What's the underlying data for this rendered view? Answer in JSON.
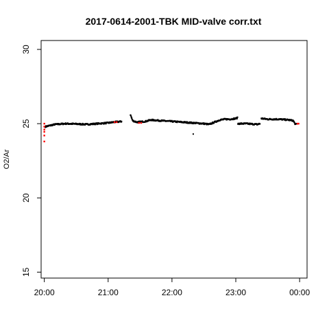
{
  "chart_data": {
    "type": "scatter",
    "title": "2017-0614-2001-TBK MID-valve corr.txt",
    "xlabel": "",
    "ylabel": "O2/Ar",
    "xlim": [
      "19:57",
      "00:07"
    ],
    "ylim": [
      14.6,
      30.6
    ],
    "x_ticks": [
      "20:00",
      "21:00",
      "22:00",
      "23:00",
      "00:00"
    ],
    "y_ticks": [
      "15",
      "20",
      "25",
      "30"
    ],
    "grid": false,
    "legend": "none",
    "colors": {
      "main": "#000000",
      "flagged": "#ff0000"
    },
    "series": [
      {
        "color": "#000000",
        "segments": [
          [
            [
              "20:01",
              24.8
            ],
            [
              "20:10",
              24.95
            ],
            [
              "20:20",
              25.0
            ],
            [
              "20:30",
              24.98
            ],
            [
              "20:40",
              24.95
            ],
            [
              "20:50",
              25.0
            ],
            [
              "21:00",
              25.05
            ],
            [
              "21:05",
              25.1
            ],
            [
              "21:13",
              25.15
            ]
          ],
          [
            [
              "21:21",
              25.6
            ],
            [
              "21:23",
              25.2
            ],
            [
              "21:27",
              25.1
            ],
            [
              "21:35",
              25.15
            ],
            [
              "21:40",
              25.25
            ],
            [
              "21:50",
              25.2
            ],
            [
              "22:00",
              25.15
            ],
            [
              "22:10",
              25.1
            ],
            [
              "22:20",
              25.05
            ],
            [
              "22:30",
              25.0
            ],
            [
              "22:35",
              24.95
            ],
            [
              "22:40",
              25.1
            ]
          ],
          [
            [
              "22:40",
              25.1
            ],
            [
              "22:45",
              25.25
            ],
            [
              "22:50",
              25.3
            ],
            [
              "22:55",
              25.3
            ],
            [
              "23:00",
              25.35
            ],
            [
              "23:02",
              25.4
            ]
          ],
          [
            [
              "23:02",
              25.0
            ],
            [
              "23:10",
              25.0
            ],
            [
              "23:20",
              24.95
            ],
            [
              "23:23",
              25.0
            ]
          ],
          [
            [
              "23:24",
              25.35
            ],
            [
              "23:30",
              25.3
            ],
            [
              "23:40",
              25.3
            ],
            [
              "23:50",
              25.25
            ],
            [
              "23:54",
              25.2
            ],
            [
              "23:56",
              24.95
            ],
            [
              "23:58",
              25.0
            ]
          ]
        ],
        "isolated_points": [
          [
            "22:20",
            24.3
          ],
          [
            "21:22",
            25.4
          ]
        ]
      },
      {
        "color": "#ff0000",
        "points": [
          [
            "20:00",
            25.0
          ],
          [
            "20:00",
            24.8
          ],
          [
            "20:00",
            24.6
          ],
          [
            "20:00",
            24.45
          ],
          [
            "20:00",
            24.2
          ],
          [
            "20:00",
            23.8
          ],
          [
            "21:06",
            25.1
          ],
          [
            "21:08",
            25.1
          ],
          [
            "21:29",
            25.05
          ],
          [
            "21:31",
            25.05
          ],
          [
            "23:58",
            25.0
          ],
          [
            "23:59",
            25.0
          ]
        ]
      }
    ]
  }
}
